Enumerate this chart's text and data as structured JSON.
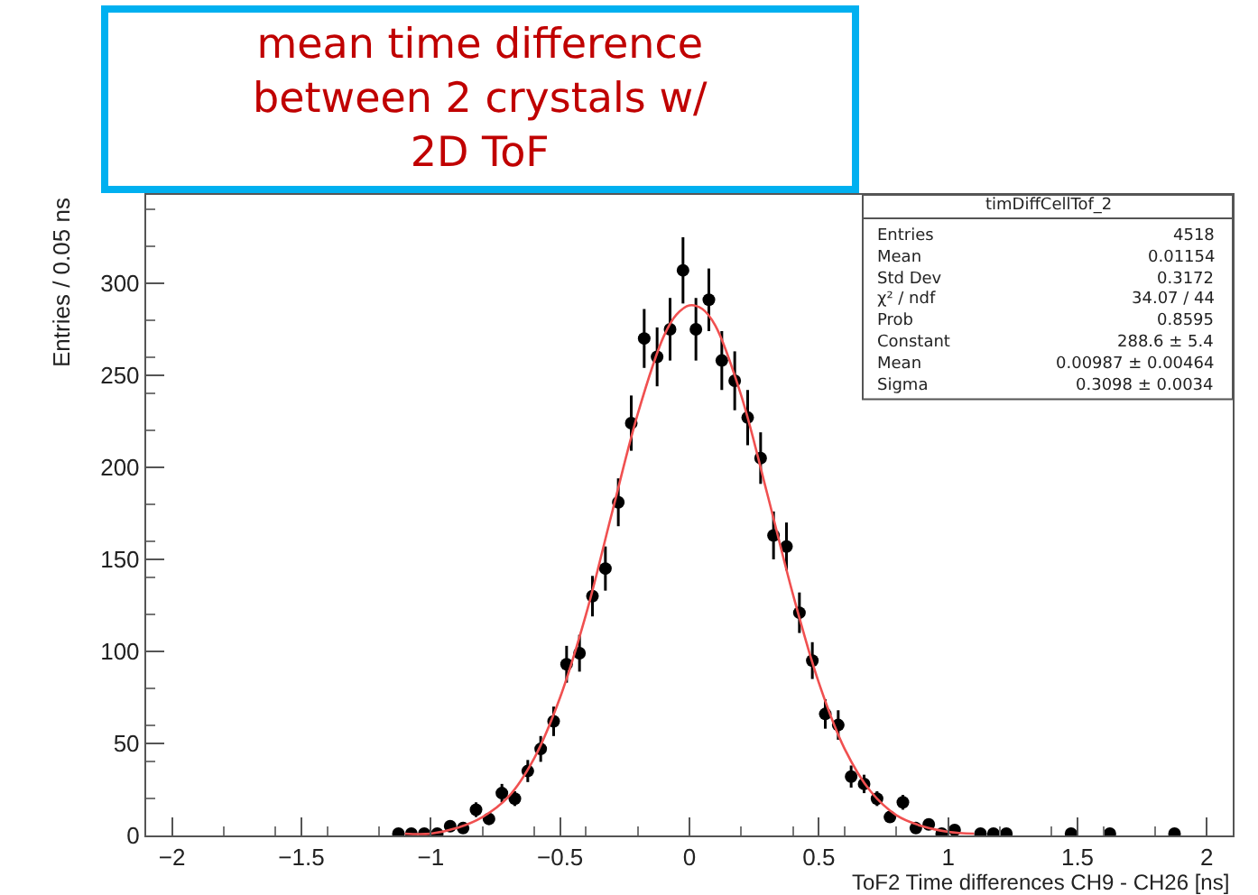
{
  "chart_data": {
    "type": "scatter",
    "title": "mean time difference between 2 crystals w/ 2D ToF",
    "xlabel": "ToF2 Time differences CH9 - CH26 [ns]",
    "ylabel": "Entries / 0.05 ns",
    "xlim": [
      -2.1,
      2.1
    ],
    "xticks": [
      {
        "value": -2,
        "label": "−2"
      },
      {
        "value": -1.5,
        "label": "−1.5"
      },
      {
        "value": -1,
        "label": "−1"
      },
      {
        "value": -0.5,
        "label": "−0.5"
      },
      0,
      0.5,
      1,
      1.5,
      2
    ],
    "ylim": [
      0,
      348
    ],
    "yticks": [
      0,
      50,
      100,
      150,
      200,
      250,
      300
    ],
    "marker": "circle",
    "series": [
      {
        "color": "#000000",
        "x": [
          -1.125,
          -1.075,
          -1.025,
          -0.975,
          -0.925,
          -0.875,
          -0.825,
          -0.775,
          -0.725,
          -0.675,
          -0.625,
          -0.575,
          -0.525,
          -0.475,
          -0.425,
          -0.375,
          -0.325,
          -0.275,
          -0.225,
          -0.175,
          -0.125,
          -0.075,
          -0.025,
          0.025,
          0.075,
          0.125,
          0.175,
          0.225,
          0.275,
          0.325,
          0.375,
          0.425,
          0.475,
          0.525,
          0.575,
          0.625,
          0.675,
          0.725,
          0.775,
          0.825,
          0.875,
          0.925,
          0.975,
          1.025,
          1.125,
          1.175,
          1.225,
          1.475,
          1.625,
          1.875
        ],
        "values": [
          1,
          1,
          1,
          1,
          5,
          4,
          14,
          9,
          23,
          20,
          35,
          47,
          62,
          93,
          99,
          130,
          145,
          181,
          224,
          270,
          260,
          275,
          307,
          275,
          291,
          258,
          247,
          227,
          205,
          163,
          157,
          121,
          95,
          66,
          60,
          32,
          28,
          20,
          10,
          18,
          4,
          6,
          1,
          3,
          1,
          1,
          1,
          1,
          1,
          1
        ],
        "errors": [
          1,
          1,
          1,
          1,
          2,
          2,
          4,
          3,
          5,
          4,
          6,
          7,
          8,
          10,
          10,
          11,
          12,
          13,
          15,
          16,
          16,
          17,
          18,
          17,
          17,
          16,
          16,
          15,
          14,
          13,
          13,
          11,
          10,
          8,
          8,
          6,
          5,
          4,
          3,
          4,
          2,
          2,
          1,
          2,
          1,
          1,
          1,
          1,
          1,
          1
        ]
      },
      {
        "type": "line",
        "color": "#f05050",
        "marker": "none",
        "line_style": "solid",
        "x": [
          -1.1,
          -1.0,
          -0.9,
          -0.8,
          -0.7,
          -0.6,
          -0.5,
          -0.4,
          -0.3,
          -0.2,
          -0.1,
          -0.05,
          0,
          0.05,
          0.1,
          0.2,
          0.3,
          0.4,
          0.5,
          0.6,
          0.7,
          0.8,
          0.9,
          1.0,
          1.1
        ],
        "values": [
          1,
          1,
          4,
          10,
          21,
          42,
          75,
          120,
          175,
          229,
          271,
          283,
          288,
          286,
          277,
          239,
          186,
          131,
          83,
          47,
          24,
          11,
          5,
          2,
          1
        ]
      }
    ],
    "annotations": [
      "timDiffCellTof_2",
      "Entries\t4518",
      "Mean\t0.01154",
      "Std Dev\t0.3172",
      "χ² / ndf\t34.07 / 44",
      "Prob\t0.8595",
      "Constant\t288.6 ± 5.4",
      "Mean\t0.00987 ± 0.00464",
      "Sigma\t0.3098 ± 0.0034"
    ]
  }
}
